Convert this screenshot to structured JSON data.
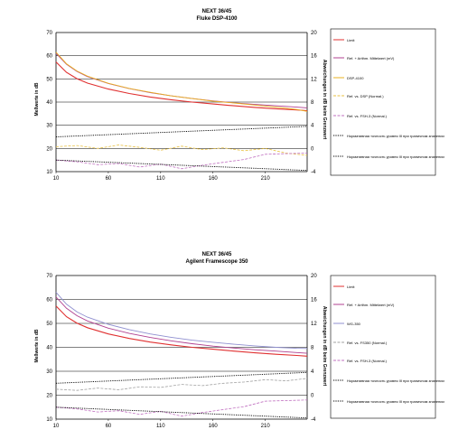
{
  "charts": [
    {
      "title1": "NEXT 36/45",
      "title2": "Fluke DSP-4100",
      "ylabel_left": "Meßwerte in dB",
      "ylabel_right": "Abweichungen in dB beim Grenzwert",
      "legend": [
        "Limit",
        "Ref. + Arithm. Mittelwert (mV)",
        "DSP-4100",
        "Ref. vs. DSP (Normal.)",
        "Ref. vs. FSH-3 (Normal.)",
        "Нормативная точность уровня III при граничном значении",
        "Нормативная точность уровня III при граничном значении"
      ]
    },
    {
      "title1": "NEXT 36/45",
      "title2": "Agilent Framescope 350",
      "ylabel_left": "Meßwerte in dB",
      "ylabel_right": "Abweichungen in dB beim Grenzwert",
      "legend": [
        "Limit",
        "Ref. + Arithm. Mittelwert (mV)",
        "WG-350",
        "Ref. vs. FS350 (Normal.)",
        "Ref. vs. FSH-3 (Normal.)",
        "Нормативная точность уровня III при граничном значении",
        "Нормативная точность уровня III при граничном значении"
      ]
    }
  ],
  "chart_data": [
    {
      "type": "line",
      "title": "NEXT 36/45 Fluke DSP-4100",
      "xlabel": "",
      "ylabel": "Meßwerte in dB",
      "ylabel_right": "Abweichungen in dB beim Grenzwert",
      "x_ticks": [
        10,
        60,
        110,
        160,
        210
      ],
      "xlim": [
        10,
        250
      ],
      "ylim": [
        10,
        70
      ],
      "ylim_right": [
        -4,
        20
      ],
      "y_ticks": [
        10,
        20,
        30,
        40,
        50,
        60,
        70
      ],
      "y_ticks_right": [
        -4,
        0,
        4,
        8,
        12,
        16,
        20
      ],
      "grid": true,
      "legend_position": "right",
      "colors": {
        "limit": "#e03030",
        "reference": "#b04090",
        "device": "#e8b020",
        "dev_vs_ref": "#e8c040",
        "fsh3_vs_ref": "#c070c0",
        "accuracy": "#000000"
      },
      "series": [
        {
          "name": "Limit",
          "axis": "left",
          "x": [
            10,
            20,
            30,
            40,
            60,
            80,
            100,
            120,
            140,
            160,
            180,
            200,
            220,
            240,
            250
          ],
          "values": [
            57.3,
            52.8,
            50.1,
            48.2,
            45.6,
            43.7,
            42.2,
            41.0,
            40.0,
            39.2,
            38.4,
            37.7,
            37.1,
            36.6,
            36.3
          ]
        },
        {
          "name": "Ref. + Arithm. Mittelwert (mV)",
          "axis": "left",
          "x": [
            10,
            20,
            30,
            40,
            60,
            80,
            100,
            120,
            140,
            160,
            180,
            200,
            220,
            240,
            250
          ],
          "values": [
            61.0,
            56.3,
            53.2,
            51.0,
            48.0,
            45.8,
            44.1,
            42.7,
            41.5,
            40.5,
            39.7,
            39.0,
            38.4,
            37.8,
            37.5
          ]
        },
        {
          "name": "DSP-4100",
          "axis": "left",
          "x": [
            10,
            20,
            30,
            40,
            60,
            80,
            100,
            120,
            140,
            160,
            180,
            200,
            220,
            240,
            250
          ],
          "values": [
            61.5,
            56.5,
            53.4,
            51.2,
            48.1,
            45.9,
            44.2,
            42.7,
            41.5,
            40.4,
            39.6,
            38.7,
            37.8,
            36.8,
            36.0
          ]
        },
        {
          "name": "Ref. vs. DSP (Normal.)",
          "axis": "right",
          "x": [
            10,
            30,
            50,
            70,
            90,
            110,
            130,
            150,
            170,
            190,
            210,
            230,
            250
          ],
          "values": [
            0.3,
            0.5,
            0.0,
            0.6,
            0.2,
            -0.3,
            0.4,
            -0.2,
            0.1,
            -0.4,
            0.0,
            -0.8,
            -1.2
          ]
        },
        {
          "name": "Ref. vs. FSH-3 (Normal.)",
          "axis": "right",
          "x": [
            10,
            30,
            50,
            70,
            90,
            110,
            130,
            150,
            170,
            190,
            210,
            230,
            250
          ],
          "values": [
            -2.0,
            -2.3,
            -2.8,
            -2.6,
            -3.2,
            -2.7,
            -3.5,
            -2.9,
            -2.4,
            -1.9,
            -1.0,
            -0.9,
            -0.8
          ]
        },
        {
          "name": "Нормативная точность уровня III при граничном значении",
          "axis": "right",
          "dashed": true,
          "x": [
            10,
            250
          ],
          "values": [
            2.0,
            3.8
          ]
        },
        {
          "name": "Нормативная точность уровня III при граничном значении",
          "axis": "right",
          "dashed": true,
          "x": [
            10,
            250
          ],
          "values": [
            -2.0,
            -3.8
          ]
        }
      ]
    },
    {
      "type": "line",
      "title": "NEXT 36/45 Agilent Framescope 350",
      "xlabel": "",
      "ylabel": "Meßwerte in dB",
      "ylabel_right": "Abweichungen in dB beim Grenzwert",
      "x_ticks": [
        10,
        60,
        110,
        160,
        210
      ],
      "xlim": [
        10,
        250
      ],
      "ylim": [
        10,
        70
      ],
      "ylim_right": [
        -4,
        20
      ],
      "y_ticks": [
        10,
        20,
        30,
        40,
        50,
        60,
        70
      ],
      "y_ticks_right": [
        -4,
        0,
        4,
        8,
        12,
        16,
        20
      ],
      "grid": true,
      "legend_position": "right",
      "colors": {
        "limit": "#e03030",
        "reference": "#b04090",
        "device": "#9090d0",
        "dev_vs_ref": "#a0a0a0",
        "fsh3_vs_ref": "#c070c0",
        "accuracy": "#000000"
      },
      "series": [
        {
          "name": "Limit",
          "axis": "left",
          "x": [
            10,
            20,
            30,
            40,
            60,
            80,
            100,
            120,
            140,
            160,
            180,
            200,
            220,
            240,
            250
          ],
          "values": [
            57.3,
            52.8,
            50.1,
            48.2,
            45.6,
            43.7,
            42.2,
            41.0,
            40.0,
            39.2,
            38.4,
            37.7,
            37.1,
            36.6,
            36.3
          ]
        },
        {
          "name": "Ref. + Arithm. Mittelwert (mV)",
          "axis": "left",
          "x": [
            10,
            20,
            30,
            40,
            60,
            80,
            100,
            120,
            140,
            160,
            180,
            200,
            220,
            240,
            250
          ],
          "values": [
            61.0,
            56.3,
            53.2,
            51.0,
            48.0,
            45.8,
            44.1,
            42.7,
            41.5,
            40.5,
            39.7,
            39.0,
            38.4,
            37.8,
            37.5
          ]
        },
        {
          "name": "WG-350",
          "axis": "left",
          "x": [
            10,
            20,
            30,
            40,
            60,
            80,
            100,
            120,
            140,
            160,
            180,
            200,
            220,
            240,
            250
          ],
          "values": [
            63.0,
            58.0,
            54.8,
            52.6,
            49.6,
            47.4,
            45.6,
            44.2,
            43.0,
            42.1,
            41.3,
            40.6,
            40.0,
            39.6,
            39.5
          ]
        },
        {
          "name": "Ref. vs. FS350 (Normal.)",
          "axis": "right",
          "x": [
            10,
            30,
            50,
            70,
            90,
            110,
            130,
            150,
            170,
            190,
            210,
            230,
            250
          ],
          "values": [
            1.0,
            0.8,
            1.2,
            0.9,
            1.4,
            1.3,
            1.8,
            1.6,
            2.0,
            2.2,
            2.6,
            2.4,
            2.8
          ]
        },
        {
          "name": "Ref. vs. FSH-3 (Normal.)",
          "axis": "right",
          "x": [
            10,
            30,
            50,
            70,
            90,
            110,
            130,
            150,
            170,
            190,
            210,
            230,
            250
          ],
          "values": [
            -2.0,
            -2.3,
            -2.8,
            -2.6,
            -3.2,
            -2.7,
            -3.5,
            -2.9,
            -2.4,
            -1.9,
            -1.0,
            -0.9,
            -0.8
          ]
        },
        {
          "name": "Нормативная точность уровня III при граничном значении",
          "axis": "right",
          "dashed": true,
          "x": [
            10,
            250
          ],
          "values": [
            2.0,
            3.8
          ]
        },
        {
          "name": "Нормативная точность уровня III при граничном значении",
          "axis": "right",
          "dashed": true,
          "x": [
            10,
            250
          ],
          "values": [
            -2.0,
            -3.8
          ]
        }
      ]
    }
  ]
}
